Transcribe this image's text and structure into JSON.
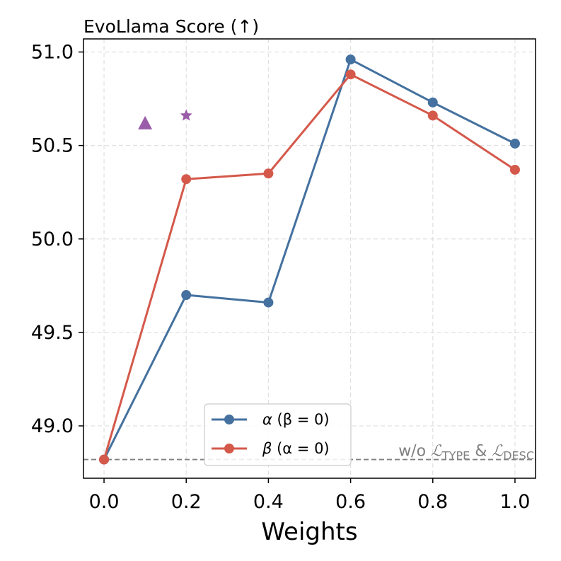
{
  "chart_data": {
    "type": "line",
    "title": "EvoLlama Score (↑)",
    "xlabel": "Weights",
    "ylabel": "",
    "xlim": [
      -0.05,
      1.05
    ],
    "ylim": [
      48.72,
      51.07
    ],
    "x": [
      0.0,
      0.2,
      0.4,
      0.6,
      0.8,
      1.0
    ],
    "xticks": [
      "0.0",
      "0.2",
      "0.4",
      "0.6",
      "0.8",
      "1.0"
    ],
    "yticks": [
      "49.0",
      "49.5",
      "50.0",
      "50.5",
      "51.0"
    ],
    "ytick_values": [
      49.0,
      49.5,
      50.0,
      50.5,
      51.0
    ],
    "grid": true,
    "series": [
      {
        "name": "alpha",
        "legend_symbol": "α",
        "legend_paren": "(β = 0)",
        "color": "#44719f",
        "values": [
          48.82,
          49.7,
          49.66,
          50.96,
          50.73,
          50.51
        ]
      },
      {
        "name": "beta",
        "legend_symbol": "β",
        "legend_paren": "(α = 0)",
        "color": "#d4594b",
        "values": [
          48.82,
          50.32,
          50.35,
          50.88,
          50.66,
          50.37
        ]
      }
    ],
    "extra_points": [
      {
        "name": "triangle-point",
        "marker": "triangle",
        "x": 0.1,
        "y": 50.62,
        "color": "#9a5ca8"
      },
      {
        "name": "star-point",
        "marker": "star",
        "x": 0.2,
        "y": 50.66,
        "color": "#9a5ca8"
      }
    ],
    "baseline": {
      "value": 48.82,
      "color": "#808080",
      "label_prefix": "w/o ",
      "label_L1": "ℒ",
      "label_sub1": "TYPE",
      "label_mid": " & ",
      "label_L2": "ℒ",
      "label_sub2": "DESC"
    },
    "legend_position": "lower-center"
  }
}
